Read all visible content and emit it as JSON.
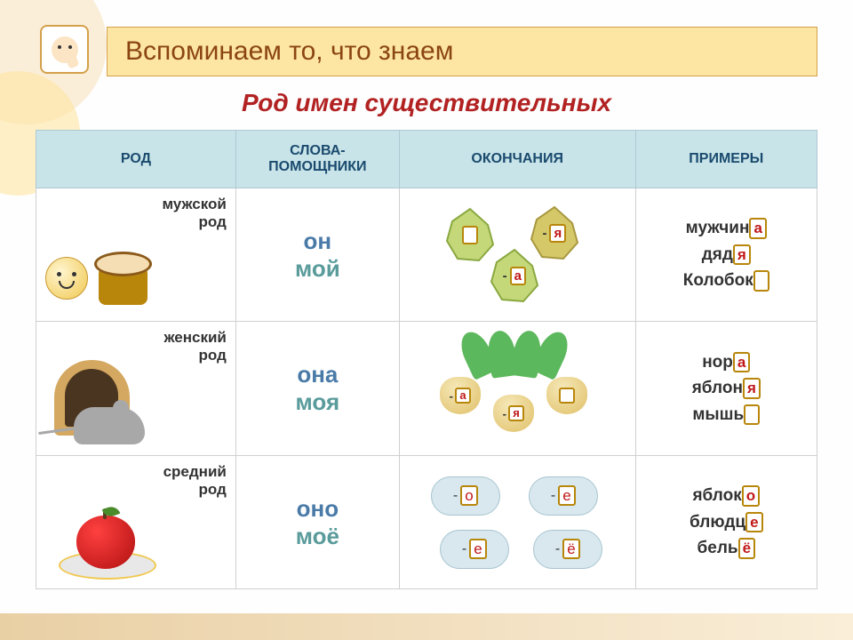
{
  "title": "Вспоминаем то, что знаем",
  "subtitle": "Род имен существительных",
  "columns": [
    "РОД",
    "СЛОВА-ПОМОЩНИКИ",
    "ОКОНЧАНИЯ",
    "ПРИМЕРЫ"
  ],
  "colors": {
    "header_bg": "#c8e4e8",
    "header_text": "#1a4a6e",
    "title_bg": "#fde6a3",
    "title_text": "#8b4513",
    "subtitle_text": "#b22222",
    "helper1": "#4a7ba8",
    "helper2": "#5a9b9b",
    "ending_box_border": "#b8860b",
    "ending_text": "#c01818",
    "leaf_fill": "#c4d87a",
    "leaf_stroke": "#8aa840",
    "cloud_fill": "#d8e8ee",
    "turnip_fill": "#e0c068",
    "table_border": "#d0d0d0"
  },
  "rows": [
    {
      "gender_line1": "мужской",
      "gender_line2": "род",
      "helper1": "он",
      "helper2": "мой",
      "endings": [
        "",
        "я",
        "а"
      ],
      "examples": [
        {
          "stem": "мужчин",
          "end": "а"
        },
        {
          "stem": "дяд",
          "end": "я"
        },
        {
          "stem": "Колобок",
          "end": ""
        }
      ]
    },
    {
      "gender_line1": "женский",
      "gender_line2": "род",
      "helper1": "она",
      "helper2": "моя",
      "endings": [
        "а",
        "я",
        ""
      ],
      "examples": [
        {
          "stem": "нор",
          "end": "а"
        },
        {
          "stem": "яблон",
          "end": "я"
        },
        {
          "stem": "мышь",
          "end": ""
        }
      ]
    },
    {
      "gender_line1": "средний",
      "gender_line2": "род",
      "helper1": "оно",
      "helper2": "моё",
      "endings": [
        "о",
        "е",
        "е",
        "ё"
      ],
      "examples": [
        {
          "stem": "яблок",
          "end": "о"
        },
        {
          "stem": "блюдц",
          "end": "е"
        },
        {
          "stem": "бель",
          "end": "ё"
        }
      ]
    }
  ]
}
